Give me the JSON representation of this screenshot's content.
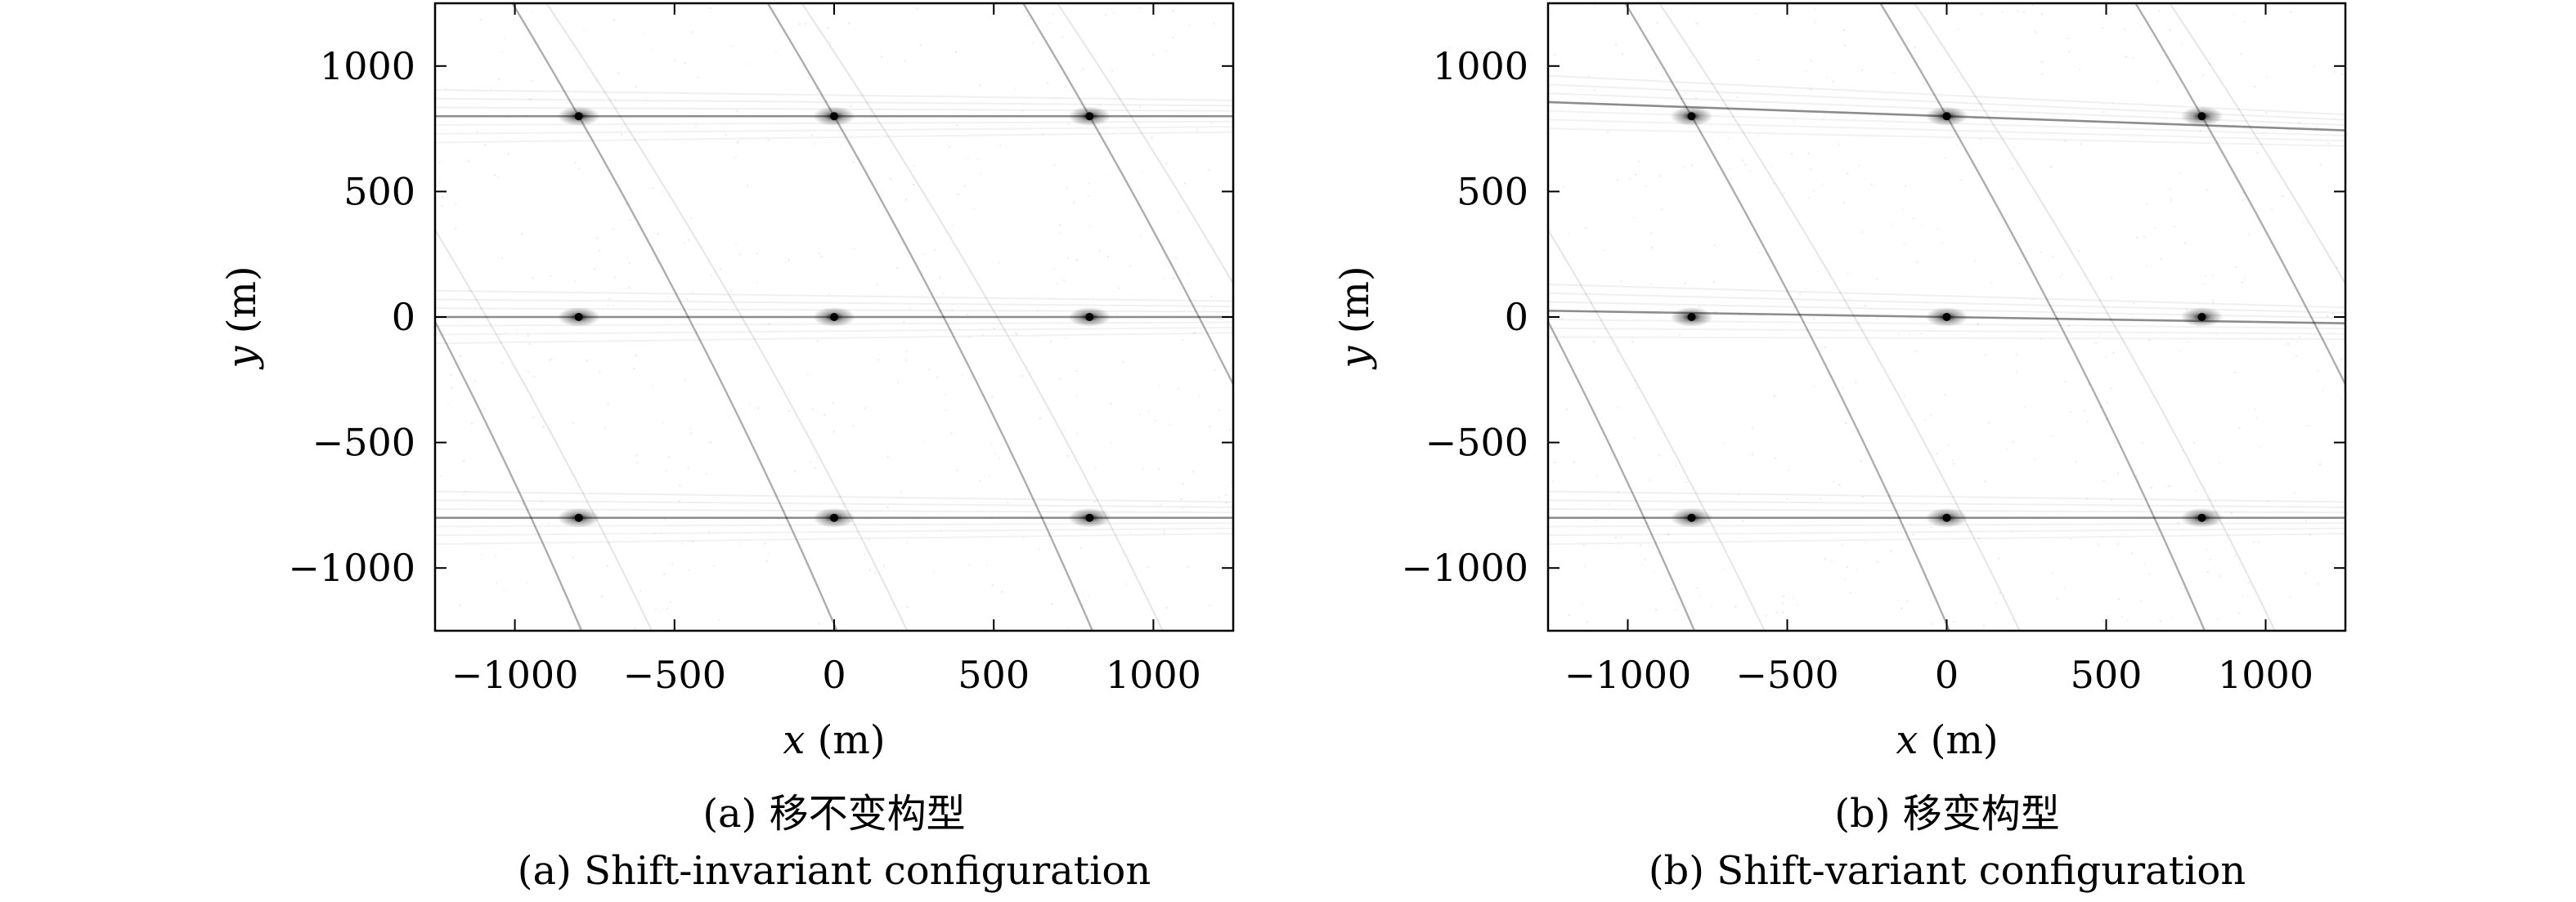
{
  "chart_data": [
    {
      "type": "scatter",
      "panel": "a",
      "caption_cn": "(a) 移不变构型",
      "caption_en": "(a) Shift-invariant configuration",
      "xlabel_var": "x",
      "xlabel_unit": "(m)",
      "ylabel_var": "y",
      "ylabel_unit": "(m)",
      "xlim": [
        -1250,
        1250
      ],
      "ylim": [
        -1250,
        1250
      ],
      "xticks": [
        -1000,
        -500,
        0,
        500,
        1000
      ],
      "yticks": [
        -1000,
        -500,
        0,
        500,
        1000
      ],
      "xtick_labels": [
        "−1000",
        "−500",
        "0",
        "500",
        "1000"
      ],
      "ytick_labels": [
        "−1000",
        "−500",
        "0",
        "500",
        "1000"
      ],
      "grid": false,
      "point_targets": [
        {
          "x": -800,
          "y": 800
        },
        {
          "x": 0,
          "y": 800
        },
        {
          "x": 800,
          "y": 800
        },
        {
          "x": -800,
          "y": 0
        },
        {
          "x": 0,
          "y": 0
        },
        {
          "x": 800,
          "y": 0
        },
        {
          "x": -800,
          "y": -800
        },
        {
          "x": 0,
          "y": -800
        },
        {
          "x": 800,
          "y": -800
        }
      ],
      "horizontal_streak_tilt": [
        0,
        0,
        0
      ]
    },
    {
      "type": "scatter",
      "panel": "b",
      "caption_cn": "(b) 移变构型",
      "caption_en": "(b) Shift-variant configuration",
      "xlabel_var": "x",
      "xlabel_unit": "(m)",
      "ylabel_var": "y",
      "ylabel_unit": "(m)",
      "xlim": [
        -1250,
        1250
      ],
      "ylim": [
        -1250,
        1250
      ],
      "xticks": [
        -1000,
        -500,
        0,
        500,
        1000
      ],
      "yticks": [
        -1000,
        -500,
        0,
        500,
        1000
      ],
      "xtick_labels": [
        "−1000",
        "−500",
        "0",
        "500",
        "1000"
      ],
      "ytick_labels": [
        "−1000",
        "−500",
        "0",
        "500",
        "1000"
      ],
      "grid": false,
      "point_targets": [
        {
          "x": -800,
          "y": 800
        },
        {
          "x": 0,
          "y": 800
        },
        {
          "x": 800,
          "y": 800
        },
        {
          "x": -800,
          "y": 0
        },
        {
          "x": 0,
          "y": 0
        },
        {
          "x": 800,
          "y": 0
        },
        {
          "x": -800,
          "y": -800
        },
        {
          "x": 0,
          "y": -800
        },
        {
          "x": 800,
          "y": -800
        }
      ],
      "horizontal_streak_tilt": [
        -0.045,
        -0.02,
        0
      ]
    }
  ]
}
